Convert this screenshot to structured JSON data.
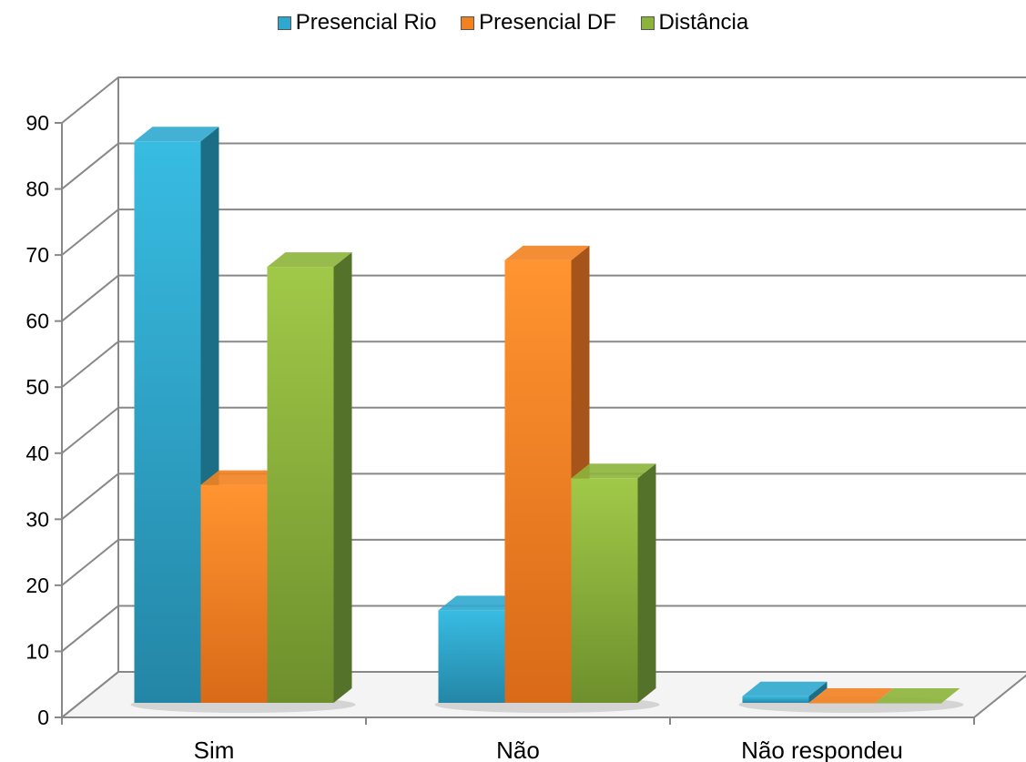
{
  "chart_data": {
    "type": "bar",
    "style": "3d-clustered-column",
    "categories": [
      "Sim",
      "Não",
      "Não respondeu"
    ],
    "series": [
      {
        "name": "Presencial Rio",
        "color": "#2FA8CF",
        "side_color": "#1C6E87",
        "values": [
          85,
          14,
          1
        ]
      },
      {
        "name": "Presencial DF",
        "color": "#F28220",
        "side_color": "#A7541A",
        "values": [
          33,
          67,
          0
        ]
      },
      {
        "name": "Distância",
        "color": "#8DB43A",
        "side_color": "#55722A",
        "values": [
          66,
          34,
          0
        ]
      }
    ],
    "ylim": [
      0,
      90
    ],
    "yticks": [
      0,
      10,
      20,
      30,
      40,
      50,
      60,
      70,
      80,
      90
    ],
    "grid": true,
    "legend_position": "top"
  }
}
